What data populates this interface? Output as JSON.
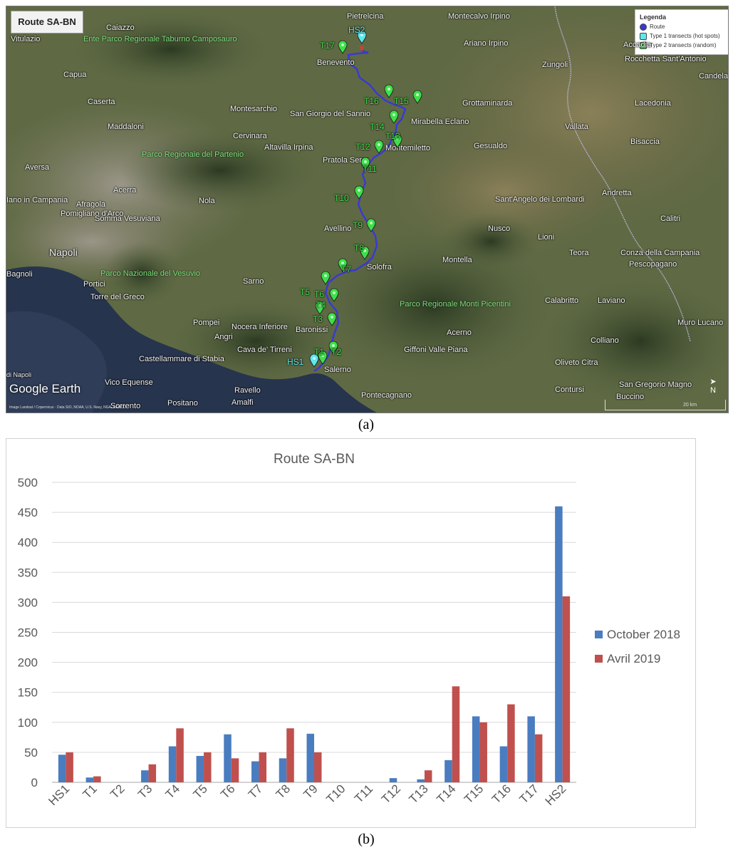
{
  "figure": {
    "label_a": "(a)",
    "label_b": "(b)"
  },
  "map": {
    "title": "Route SA-BN",
    "legend": {
      "title": "Legenda",
      "items": [
        {
          "label": "Route",
          "color": "#3a3ad0"
        },
        {
          "label": "Type 1 transects (hot spots)",
          "color": "#5fe6ee"
        },
        {
          "label": "Type 2 transects (random)",
          "color": "#3ee04a"
        }
      ]
    },
    "towns": [
      "Pietrelcina",
      "Montecalvo Irpino",
      "Caiazzo",
      "Vitulazio",
      "Accadia",
      "Ariano Irpino",
      "Zungoli",
      "Benevento",
      "Rocchetta Sant'Antonio",
      "Capua",
      "Candela",
      "Caserta",
      "Montesarchio",
      "San Giorgio del Sannio",
      "Grottaminarda",
      "Mirabella Eclano",
      "Lacedonia",
      "Maddaloni",
      "Vallata",
      "Cervinara",
      "Bisaccia",
      "Altavilla Irpina",
      "Gesualdo",
      "Montemiletto",
      "Aversa",
      "Pratola Serra",
      "Acerra",
      "Andretta",
      "Iano in Campania",
      "Sant'Angelo dei Lombardi",
      "Afragola",
      "Nola",
      "Pomigliano d'Arco",
      "Avellino",
      "Calitri",
      "Somma Vesuviana",
      "Nusco",
      "Lioni",
      "Napoli",
      "Montella",
      "Teora",
      "Conza della Campania",
      "Solofra",
      "Pescopagano",
      "Bagnoli",
      "Portici",
      "Sarno",
      "Torre del Greco",
      "Calabritto",
      "Laviano",
      "Pompei",
      "Baronissi",
      "Muro Lucano",
      "Nocera Inferiore",
      "Acerno",
      "Angri",
      "Colliano",
      "Castellammare di Stabia",
      "Cava de' Tirreni",
      "Giffoni Valle Piana",
      "Oliveto Citra",
      "di Napoli",
      "Salerno",
      "Vico Equense",
      "San Gregorio Magno",
      "Ravello",
      "Contursi",
      "Pontecagnano",
      "Buccino",
      "Sorrento",
      "Positano",
      "Amalfi"
    ],
    "parks": [
      "Ente Parco Regionale Taburno Camposauro",
      "Parco Regionale del Partenio",
      "Parco Nazionale del Vesuvio",
      "Parco Regionale Monti Picentini"
    ],
    "transects": [
      "HS2",
      "T17",
      "T16",
      "T15",
      "T14",
      "T13",
      "T12",
      "T11",
      "T10",
      "T9",
      "T8",
      "T7",
      "T5",
      "T6",
      "T4",
      "T3",
      "T1",
      "T2",
      "HS1"
    ],
    "logo": "Google Earth",
    "credits": "Image Landsat / Copernicus · Data SIO, NOAA, U.S. Navy, NGA, GEBCO",
    "scale": "20 km",
    "north": "N"
  },
  "chart_data": {
    "type": "bar",
    "title": "Route SA-BN",
    "categories": [
      "HS1",
      "T1",
      "T2",
      "T3",
      "T4",
      "T5",
      "T6",
      "T7",
      "T8",
      "T9",
      "T10",
      "T11",
      "T12",
      "T13",
      "T14",
      "T15",
      "T16",
      "T17",
      "HS2"
    ],
    "series": [
      {
        "name": "October 2018",
        "color": "#4a7cc0",
        "values": [
          46,
          8,
          0,
          20,
          60,
          44,
          80,
          35,
          40,
          81,
          0,
          0,
          7,
          5,
          37,
          110,
          60,
          110,
          460
        ]
      },
      {
        "name": "Avril 2019",
        "color": "#c0504d",
        "values": [
          50,
          10,
          0,
          30,
          90,
          50,
          40,
          50,
          90,
          50,
          0,
          0,
          0,
          20,
          160,
          100,
          130,
          80,
          310
        ]
      }
    ],
    "ylim": [
      0,
      500
    ],
    "yticks": [
      0,
      50,
      100,
      150,
      200,
      250,
      300,
      350,
      400,
      450,
      500
    ],
    "grid": true,
    "legend_position": "right"
  }
}
